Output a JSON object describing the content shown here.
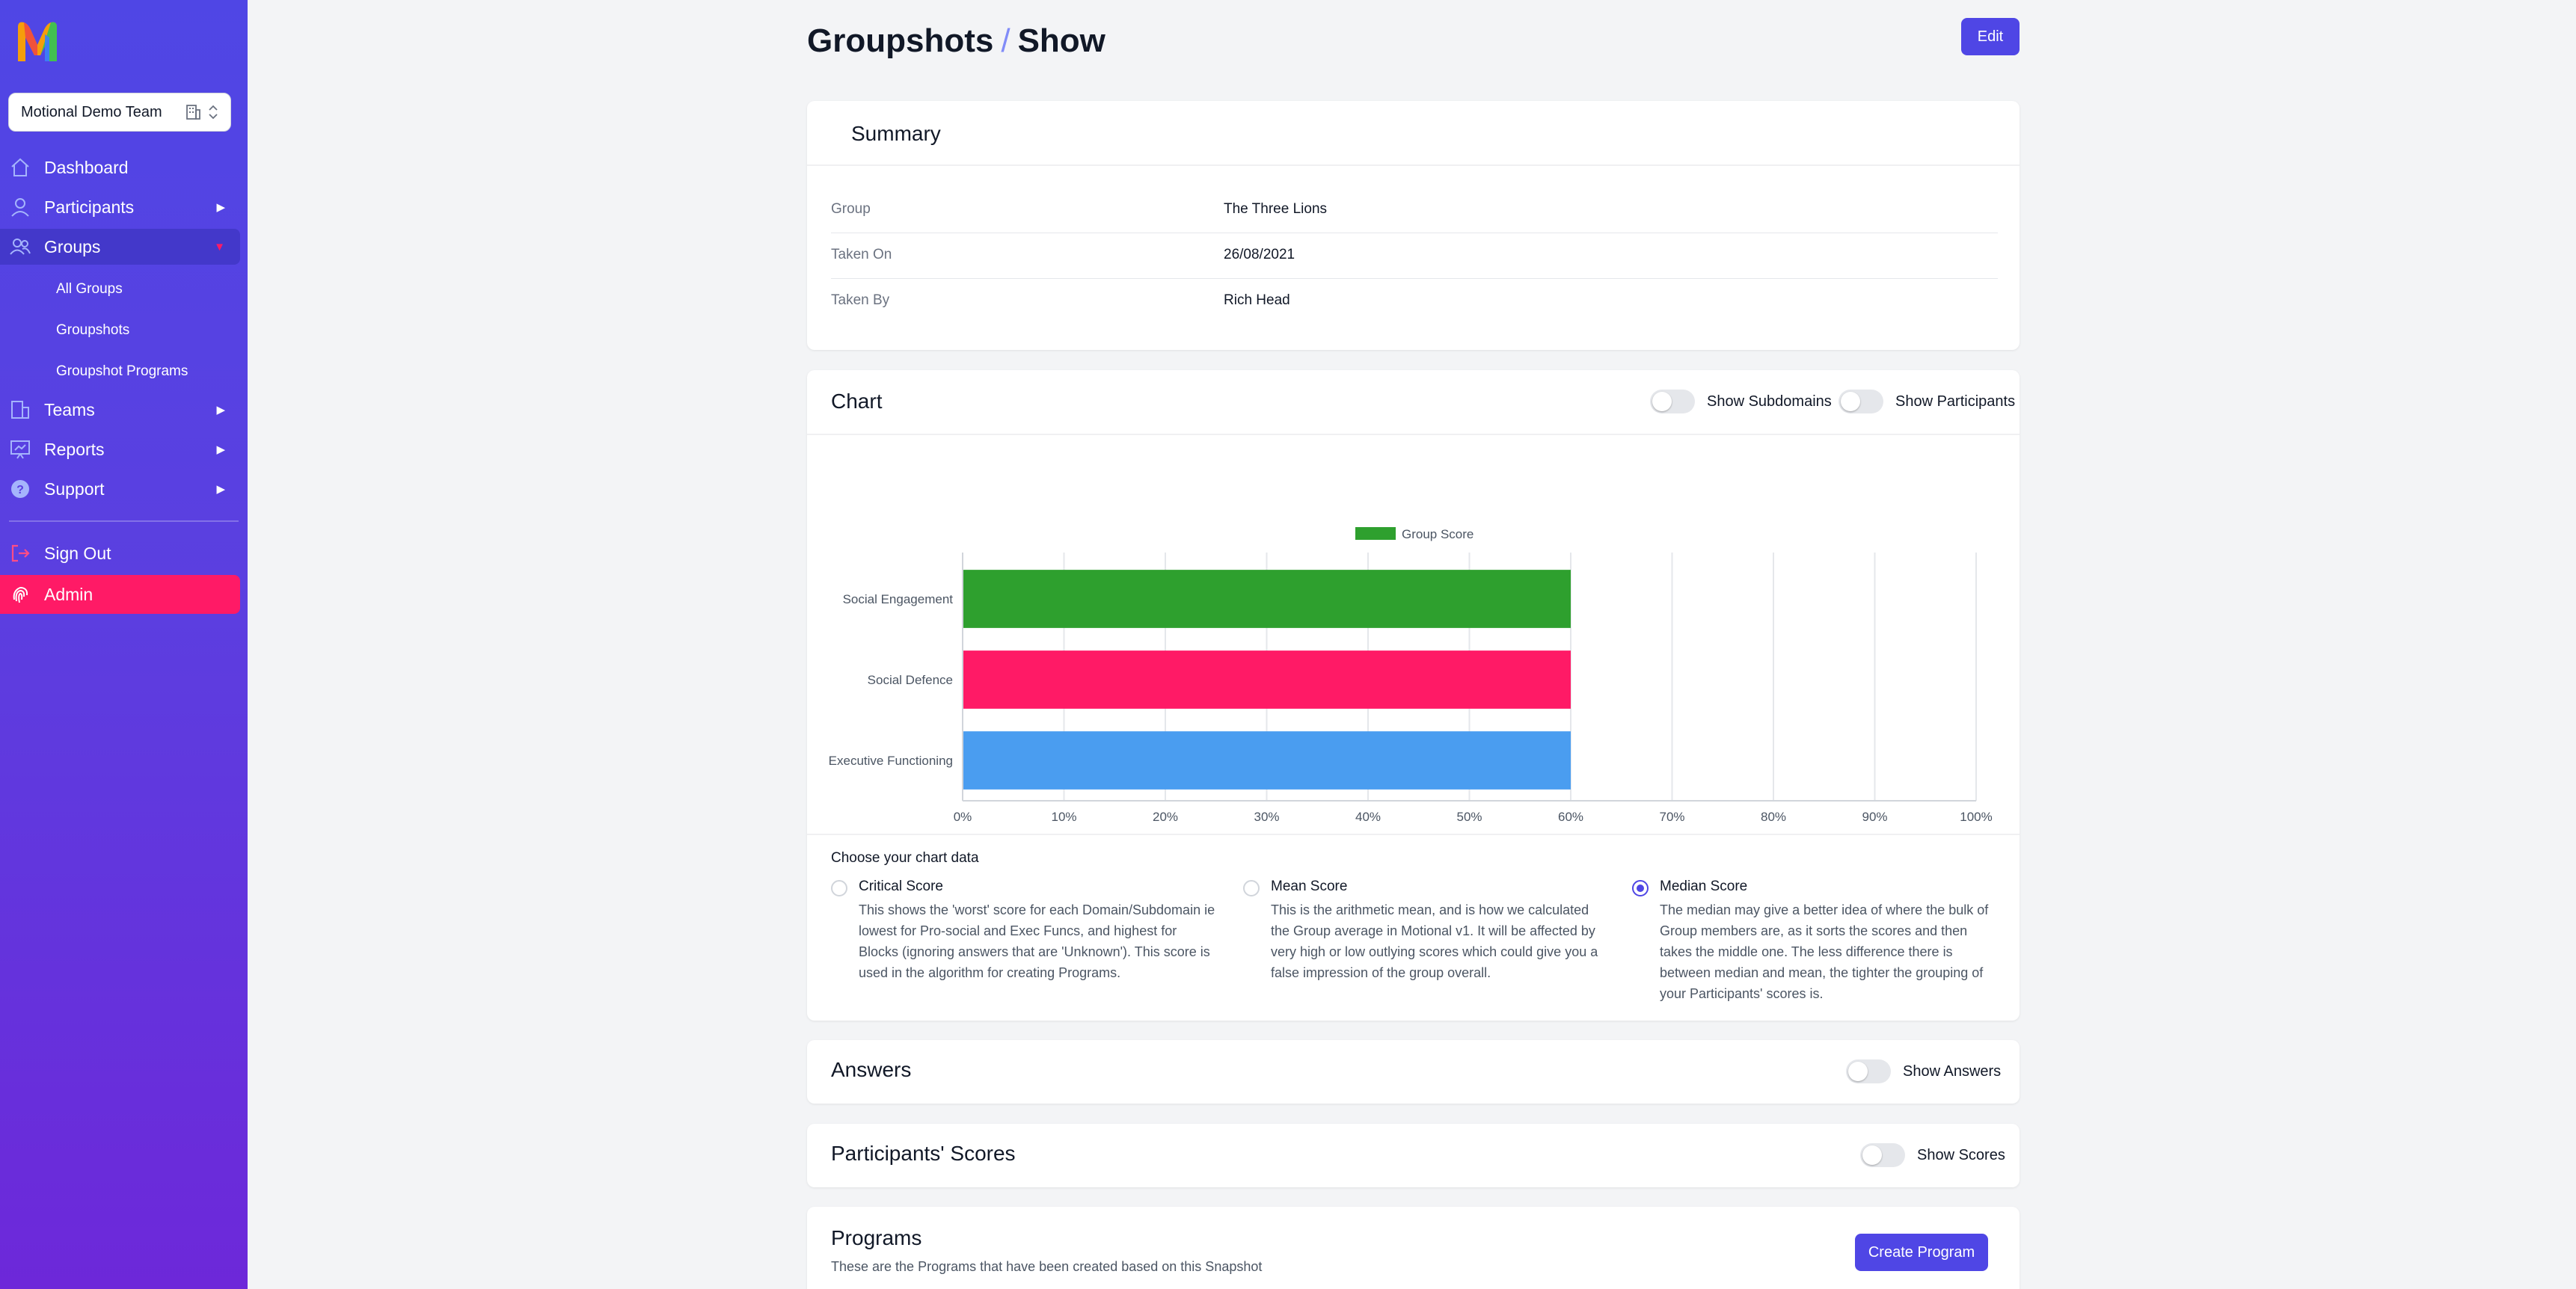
{
  "sidebar": {
    "team": "Motional Demo Team",
    "nav": {
      "dashboard": "Dashboard",
      "participants": "Participants",
      "groups": "Groups",
      "teams": "Teams",
      "reports": "Reports",
      "support": "Support",
      "sign_out": "Sign Out",
      "admin": "Admin"
    },
    "groups_sub": [
      "All Groups",
      "Groupshots",
      "Groupshot Programs"
    ]
  },
  "page": {
    "title_main": "Groupshots",
    "title_sep": "/",
    "title_sub": "Show",
    "edit_label": "Edit"
  },
  "summary": {
    "title": "Summary",
    "rows": [
      {
        "key": "Group",
        "value": "The Three Lions"
      },
      {
        "key": "Taken On",
        "value": "26/08/2021"
      },
      {
        "key": "Taken By",
        "value": "Rich Head"
      }
    ]
  },
  "chart_card": {
    "title": "Chart",
    "toggle_subdomains": "Show Subdomains",
    "toggle_participants": "Show Participants",
    "choose_label": "Choose your chart data",
    "options": [
      {
        "title": "Critical Score",
        "desc": "This shows the 'worst' score for each Domain/Subdomain ie lowest for Pro-social and Exec Funcs, and highest for Blocks (ignoring answers that are 'Unknown'). This score is used in the algorithm for creating Programs.",
        "selected": false
      },
      {
        "title": "Mean Score",
        "desc": "This is the arithmetic mean, and is how we calculated the Group average in Motional v1. It will be affected by very high or low outlying scores which could give you a false impression of the group overall.",
        "selected": false
      },
      {
        "title": "Median Score",
        "desc": "The median may give a better idea of where the bulk of Group members are, as it sorts the scores and then takes the middle one. The less difference there is between median and mean, the tighter the grouping of your Participants' scores is.",
        "selected": true
      }
    ]
  },
  "chart_data": {
    "type": "bar",
    "orientation": "horizontal",
    "categories": [
      "Social Engagement",
      "Social Defence",
      "Executive Functioning"
    ],
    "series": [
      {
        "name": "Group Score",
        "values": [
          60,
          60,
          60
        ]
      }
    ],
    "bar_colors": [
      "#2ea02e",
      "#ff1a66",
      "#4a9df0"
    ],
    "legend_color": "#2ea02e",
    "xlim": [
      0,
      100
    ],
    "x_ticks": [
      "0%",
      "10%",
      "20%",
      "30%",
      "40%",
      "50%",
      "60%",
      "70%",
      "80%",
      "90%",
      "100%"
    ],
    "grid": true,
    "legend": "top-center"
  },
  "answers": {
    "title": "Answers",
    "toggle": "Show Answers"
  },
  "scores": {
    "title": "Participants' Scores",
    "toggle": "Show Scores"
  },
  "programs": {
    "title": "Programs",
    "desc": "These are the Programs that have been created based on this Snapshot",
    "create_label": "Create Program"
  }
}
